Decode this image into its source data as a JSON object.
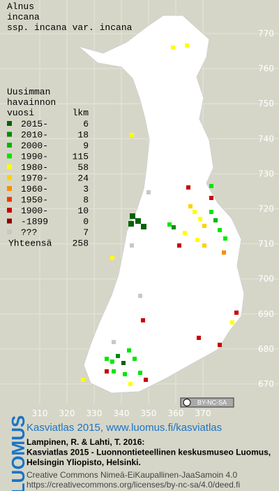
{
  "title_lines": [
    "Alnus",
    "incana",
    "ssp. incana var. incana"
  ],
  "legend": {
    "header": [
      "Uusimman",
      "havainnon"
    ],
    "col_year": "vuosi",
    "col_count": "lkm",
    "rows": [
      {
        "label": "2015-",
        "count": 6,
        "color": "#006400"
      },
      {
        "label": "2010-",
        "count": 18,
        "color": "#008c00"
      },
      {
        "label": "2000-",
        "count": 9,
        "color": "#00b400"
      },
      {
        "label": "1990-",
        "count": 115,
        "color": "#00e600"
      },
      {
        "label": "1980-",
        "count": 58,
        "color": "#ffff00"
      },
      {
        "label": "1970-",
        "count": 24,
        "color": "#ffd200"
      },
      {
        "label": "1960-",
        "count": 3,
        "color": "#ff8c00"
      },
      {
        "label": "1950-",
        "count": 8,
        "color": "#e63c00"
      },
      {
        "label": "1900-",
        "count": 10,
        "color": "#c80000"
      },
      {
        "label": "-1899",
        "count": 0,
        "color": "#8c0000"
      },
      {
        "label": "???",
        "count": 7,
        "color": "#c8c8c8"
      }
    ],
    "total_label": "Yhteensä",
    "total": 258
  },
  "axes": {
    "xticks": [
      310,
      320,
      330,
      340,
      350,
      360,
      370
    ],
    "yticks": [
      770,
      760,
      750,
      740,
      730,
      720,
      710,
      700,
      690,
      680,
      670
    ]
  },
  "cc_badge": "BY-NC-SA",
  "footer": {
    "logo": "LUOMUS",
    "heading": "Kasviatlas 2015, www.luomus.fi/kasviatlas",
    "citation": [
      "Lampinen, R. & Lahti, T. 2016:",
      "Kasviatlas 2015 - Luonnontieteellinen keskusmuseo Luomus,",
      "Helsingin Yliopisto, Helsinki."
    ],
    "license": [
      "Creative Commons Nimeä-EiKaupallinen-JaaSamoin 4.0",
      "https://creativecommons.org/licenses/by-nc-sa/4.0/deed.fi"
    ]
  }
}
